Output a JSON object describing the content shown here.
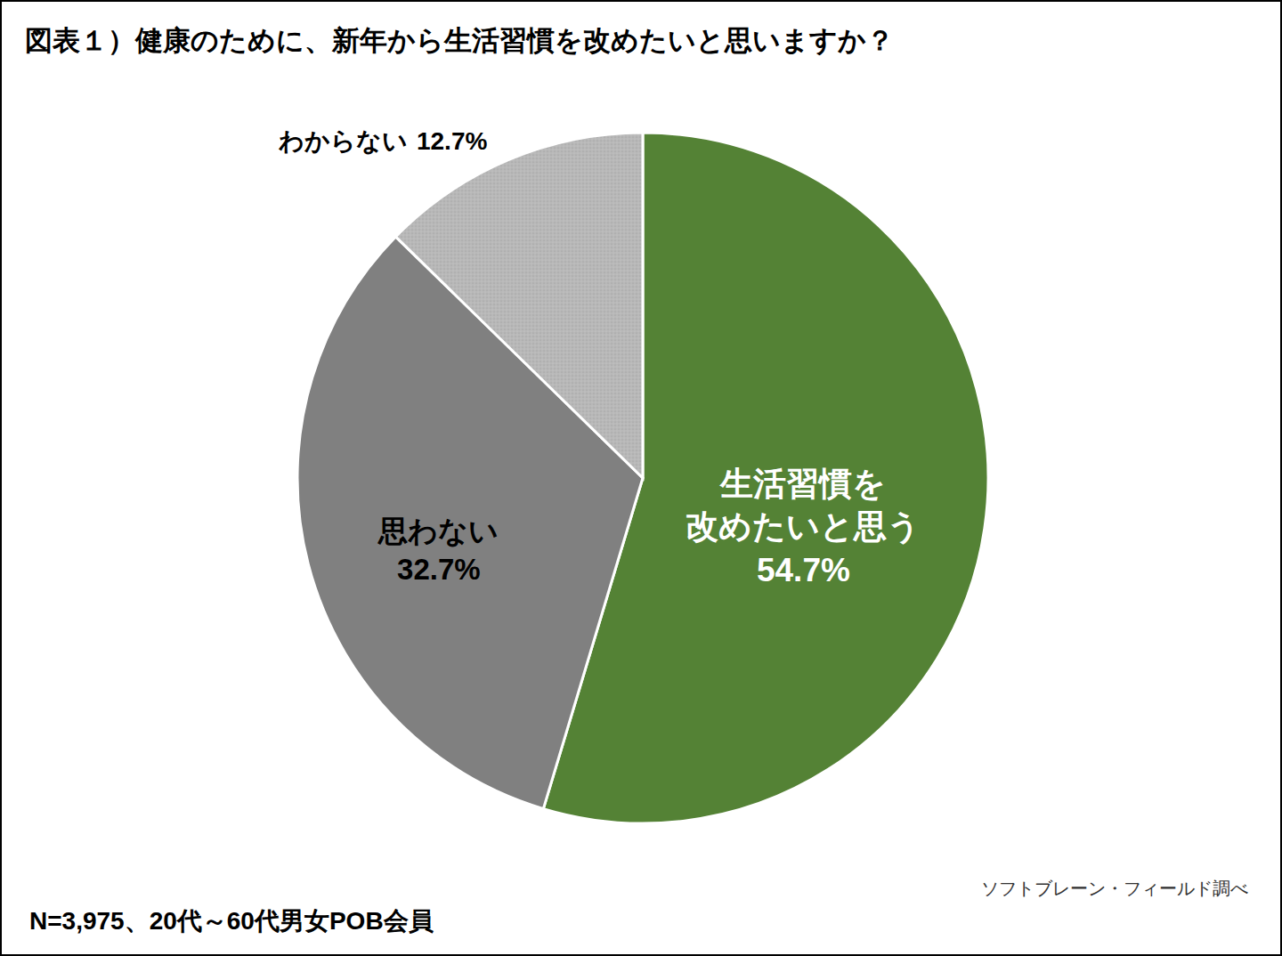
{
  "chart_data": {
    "type": "pie",
    "title": "図表１）健康のために、新年から生活習慣を改めたいと思いますか？",
    "categories": [
      "生活習慣を\n改めたいと思う",
      "思わない",
      "わからない"
    ],
    "values": [
      54.7,
      32.7,
      12.7
    ],
    "value_labels": [
      "54.7%",
      "32.7%",
      "12.7%"
    ],
    "colors": [
      "#548235",
      "#808080",
      "#b8b8b8"
    ],
    "data_labels": true,
    "annotations": [
      "ソフトブレーン・フィールド調べ",
      "N=3,975、20代～60代男女POB会員"
    ]
  }
}
